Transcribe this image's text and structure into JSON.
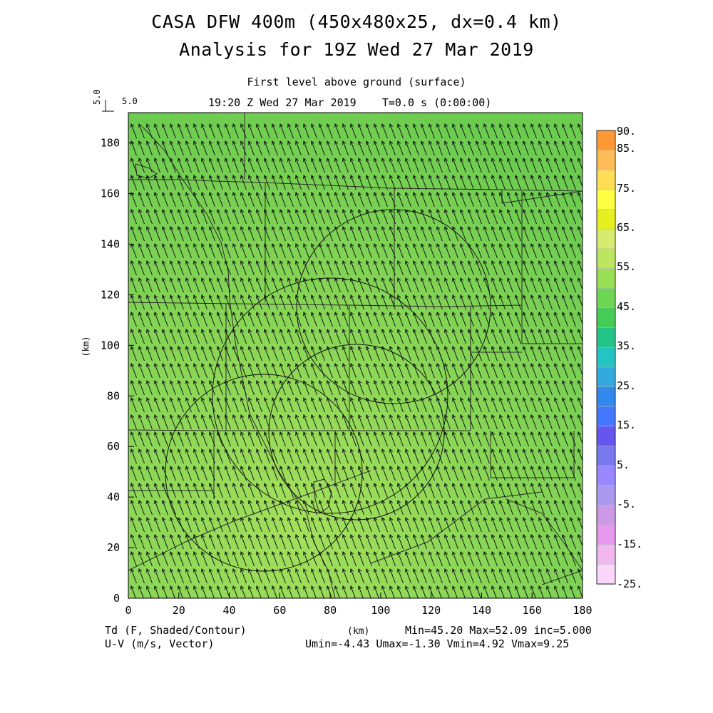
{
  "header": {
    "title_line1": "CASA DFW 400m (450x480x25, dx=0.4 km)",
    "title_line2": "Analysis for 19Z Wed 27 Mar 2019",
    "level": "First level above ground (surface)",
    "time": "19:20 Z Wed 27 Mar 2019    T=0.0 s (0:00:00)"
  },
  "vector_key": {
    "rotated_label": "5.0",
    "label": "5.0"
  },
  "footer": {
    "left1": "Td (F, Shaded/Contour)",
    "left2": "U-V (m/s, Vector)",
    "xunit": "(km)",
    "stats1": "Min=45.20 Max=52.09 inc=5.000",
    "stats2": "Umin=-4.43 Umax=-1.30 Vmin=4.92 Vmax=9.25"
  },
  "chart_data": {
    "type": "heatmap",
    "xlabel": "(km)",
    "ylabel": "(km)",
    "xlim": [
      0,
      180
    ],
    "ylim": [
      0,
      192
    ],
    "xticks": [
      0,
      20,
      40,
      60,
      80,
      100,
      120,
      140,
      160,
      180
    ],
    "yticks": [
      0,
      20,
      40,
      60,
      80,
      100,
      120,
      140,
      160,
      180
    ],
    "field": "Td (F)",
    "min": 45.2,
    "max": 52.09,
    "inc": 5.0,
    "colorbar": {
      "labels": [
        "90.",
        "85.",
        "75.",
        "65.",
        "55.",
        "45.",
        "35.",
        "25.",
        "15.",
        "5.",
        "-5.",
        "-15.",
        "-25."
      ],
      "colors": [
        "#ff9933",
        "#ffbb55",
        "#ffdd55",
        "#ffff44",
        "#e6f020",
        "#d6ec6e",
        "#bde660",
        "#9ade55",
        "#6dd653",
        "#44cc55",
        "#22c488",
        "#22c4c4",
        "#33aadd",
        "#3388ee",
        "#4477ff",
        "#6655ee",
        "#7777ee",
        "#9988ff",
        "#aa99ee",
        "#cc99e6",
        "#e699ee",
        "#f0b8ee",
        "#fad6fa"
      ]
    },
    "vectors": {
      "u_min": -4.43,
      "u_max": -1.3,
      "v_min": 4.92,
      "v_max": 9.25,
      "unit": "m/s"
    },
    "radar_circles_km": [
      {
        "cx": 107,
        "cy": 117,
        "r": 38
      },
      {
        "cx": 80,
        "cy": 81,
        "r": 46
      },
      {
        "cx": 91,
        "cy": 67,
        "r": 34
      },
      {
        "cx": 54,
        "cy": 51,
        "r": 36
      }
    ]
  }
}
